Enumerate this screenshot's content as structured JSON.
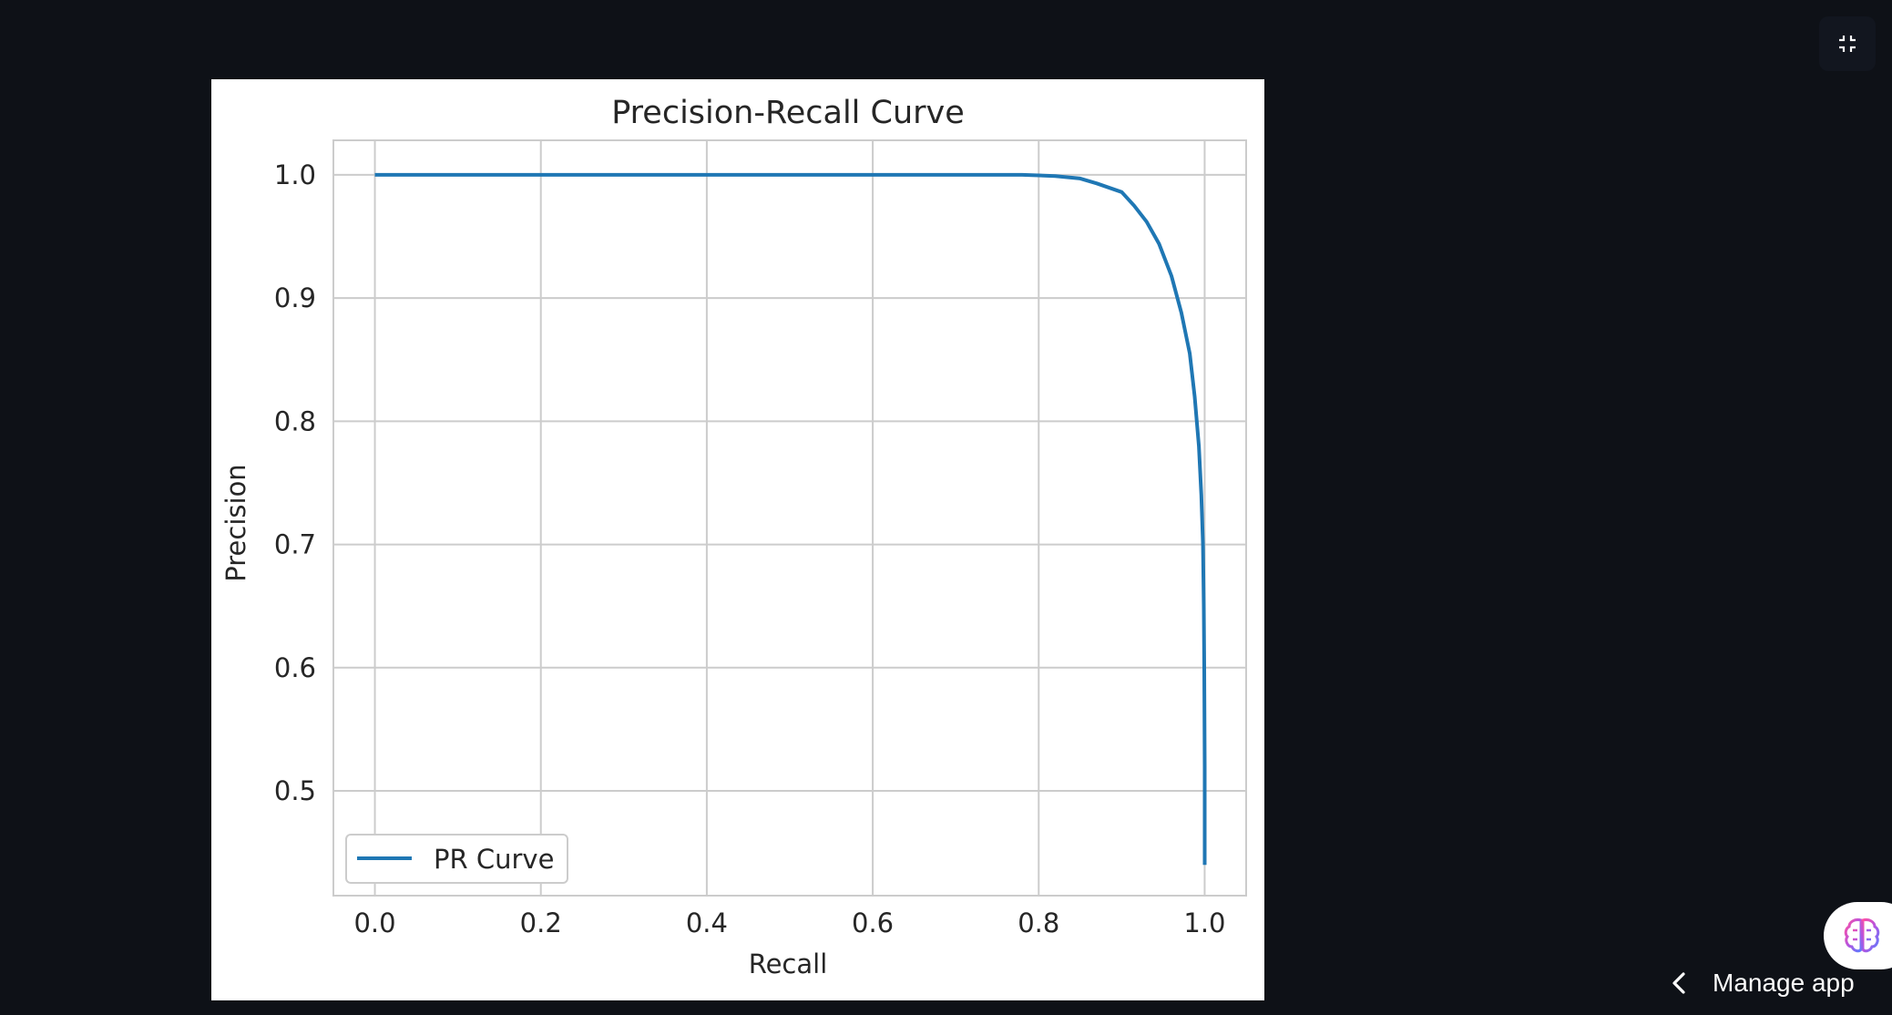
{
  "colors": {
    "background": "#0e1117",
    "figure_bg": "#ffffff",
    "grid": "#cccccc",
    "curve": "#1f77b4",
    "text": "#262626",
    "app_text": "#fafafa"
  },
  "icons": {
    "fullscreen": "exit-fullscreen-icon",
    "assistant": "brain-icon",
    "manage_chevron": "chevron-left-icon"
  },
  "app": {
    "manage_label": "Manage app"
  },
  "chart_data": {
    "type": "line",
    "title": "Precision-Recall Curve",
    "xlabel": "Recall",
    "ylabel": "Precision",
    "xlim": [
      -0.05,
      1.05
    ],
    "ylim": [
      0.415,
      1.028
    ],
    "xticks": [
      "0.0",
      "0.2",
      "0.4",
      "0.6",
      "0.8",
      "1.0"
    ],
    "yticks": [
      "0.5",
      "0.6",
      "0.7",
      "0.8",
      "0.9",
      "1.0"
    ],
    "grid": true,
    "legend_position": "lower-left",
    "series": [
      {
        "name": "PR Curve",
        "x": [
          0.0,
          0.2,
          0.4,
          0.6,
          0.78,
          0.82,
          0.85,
          0.87,
          0.9,
          0.915,
          0.93,
          0.945,
          0.96,
          0.972,
          0.982,
          0.988,
          0.993,
          0.996,
          0.998,
          0.999,
          0.9995,
          1.0,
          1.0
        ],
        "y": [
          1.0,
          1.0,
          1.0,
          1.0,
          1.0,
          0.999,
          0.997,
          0.993,
          0.986,
          0.975,
          0.962,
          0.944,
          0.918,
          0.888,
          0.855,
          0.82,
          0.78,
          0.74,
          0.7,
          0.65,
          0.6,
          0.52,
          0.44
        ]
      }
    ]
  }
}
